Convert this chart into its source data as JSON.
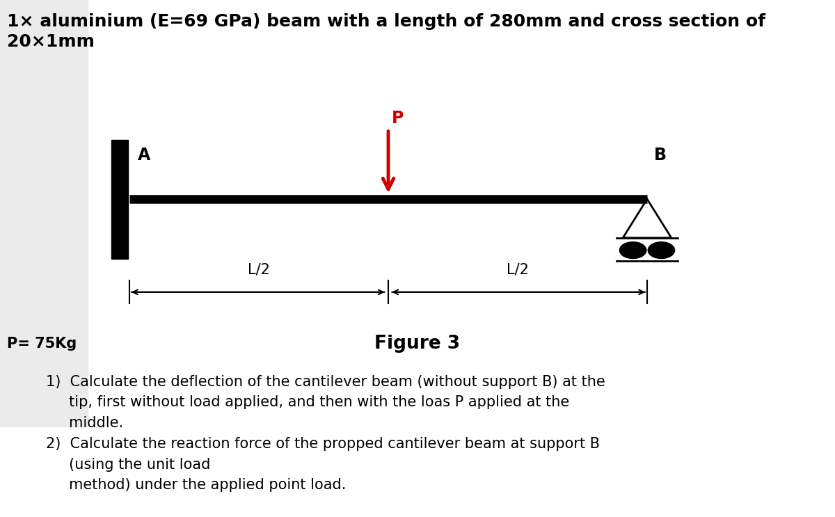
{
  "title_text": "1× aluminium (E=69 GPa) beam with a length of 280mm and cross section of\n20×1mm",
  "figure_label": "Figure 3",
  "p_label": "P= 75Kg",
  "load_label": "P",
  "label_A": "A",
  "label_B": "B",
  "label_L2_left": "L/2",
  "label_L2_right": "L/2",
  "q1_line1": "1)  Calculate the deflection of the cantilever beam (without support B) at the",
  "q1_line2": "     tip, first without load applied, and then with the loas P applied at the",
  "q1_line3": "     middle.",
  "q2_line1": "2)  Calculate the reaction force of the propped cantilever beam at support B",
  "q2_line2": "     (using the unit load",
  "q2_line3": "     method) under the applied point load.",
  "bg_color": "#ffffff",
  "beam_color": "#000000",
  "load_arrow_color": "#cc0000",
  "load_label_color": "#cc0000",
  "text_color": "#000000",
  "gray_bg": "#ebebeb",
  "title_fontsize": 18,
  "label_fontsize": 17,
  "dim_fontsize": 15,
  "fig_label_fontsize": 19,
  "body_fontsize": 15
}
